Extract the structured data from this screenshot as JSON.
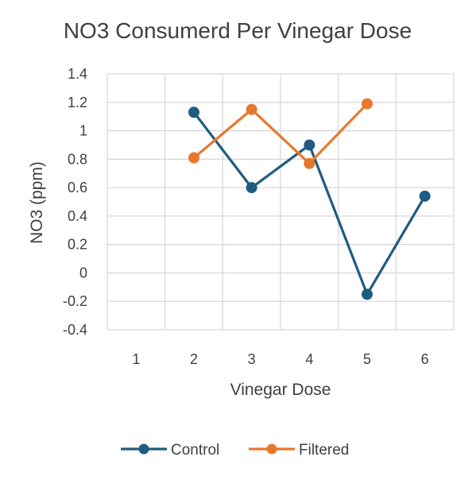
{
  "chart_data": {
    "type": "line",
    "title": "NO3 Consumerd Per Vinegar Dose",
    "xlabel": "Vinegar Dose",
    "ylabel": "NO3 (ppm)",
    "categories": [
      "1",
      "2",
      "3",
      "4",
      "5",
      "6"
    ],
    "ylim": [
      -0.4,
      1.4
    ],
    "yticks": [
      -0.4,
      -0.2,
      0,
      0.2,
      0.4,
      0.6,
      0.8,
      1,
      1.2,
      1.4
    ],
    "ytick_labels": [
      "-0.4",
      "-0.2",
      "0",
      "0.2",
      "0.4",
      "0.6",
      "0.8",
      "1",
      "1.2",
      "1.4"
    ],
    "grid": true,
    "legend_position": "bottom",
    "series": [
      {
        "name": "Control",
        "color": "#1f5c7f",
        "values": [
          null,
          1.13,
          0.6,
          0.9,
          -0.15,
          0.54
        ]
      },
      {
        "name": "Filtered",
        "color": "#e8772e",
        "values": [
          null,
          0.81,
          1.15,
          0.77,
          1.19,
          null
        ]
      }
    ]
  }
}
